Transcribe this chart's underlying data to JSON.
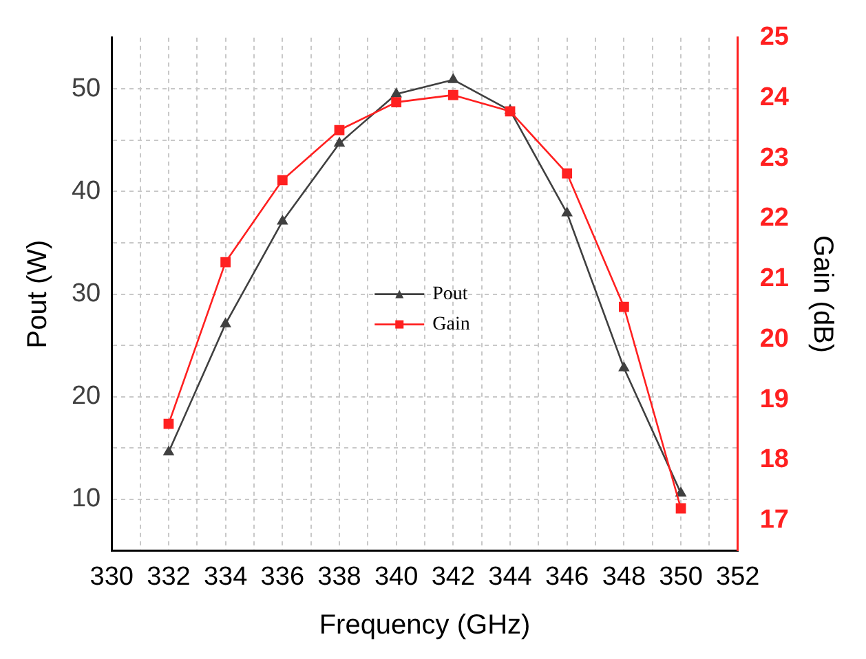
{
  "chart_data": {
    "type": "line",
    "xlabel": "Frequency (GHz)",
    "ylabel": "Pout (W)",
    "y2label": "Gain (dB)",
    "x": [
      332,
      334,
      336,
      338,
      340,
      342,
      344,
      346,
      348,
      350
    ],
    "series": [
      {
        "name": "Pout",
        "color": "#404040",
        "marker": "triangle",
        "values": [
          14.6,
          27.1,
          37.1,
          44.7,
          49.5,
          50.9,
          47.9,
          37.9,
          22.8,
          10.6
        ]
      },
      {
        "name": "Gain",
        "color": "#ff2020",
        "marker": "square",
        "axis": "y2",
        "values": [
          18.6,
          21.28,
          22.64,
          23.47,
          23.93,
          24.05,
          23.78,
          22.75,
          20.54,
          17.2
        ]
      }
    ],
    "xlim": [
      330,
      352
    ],
    "xticks": [
      330,
      {
        "value": 331,
        "label": null
      },
      332,
      {
        "value": 333,
        "label": null
      },
      334,
      {
        "value": 335,
        "label": null
      },
      336,
      {
        "value": 337,
        "label": null
      },
      338,
      {
        "value": 339,
        "label": null
      },
      340,
      {
        "value": 341,
        "label": null
      },
      342,
      {
        "value": 343,
        "label": null
      },
      344,
      {
        "value": 345,
        "label": null
      },
      346,
      {
        "value": 347,
        "label": null
      },
      348,
      {
        "value": 349,
        "label": null
      },
      350,
      {
        "value": 351,
        "label": null
      },
      352
    ],
    "ylim": [
      5,
      55
    ],
    "yticks": [
      10,
      {
        "value": 15,
        "label": null
      },
      20,
      {
        "value": 25,
        "label": null
      },
      30,
      {
        "value": 35,
        "label": null
      },
      40,
      {
        "value": 45,
        "label": null
      },
      50
    ],
    "y2lim": [
      16.5,
      25
    ],
    "y2ticks": [
      17,
      18,
      19,
      20,
      21,
      22,
      23,
      24,
      25
    ],
    "grid": true,
    "legend": "center",
    "line_style": "solid"
  }
}
